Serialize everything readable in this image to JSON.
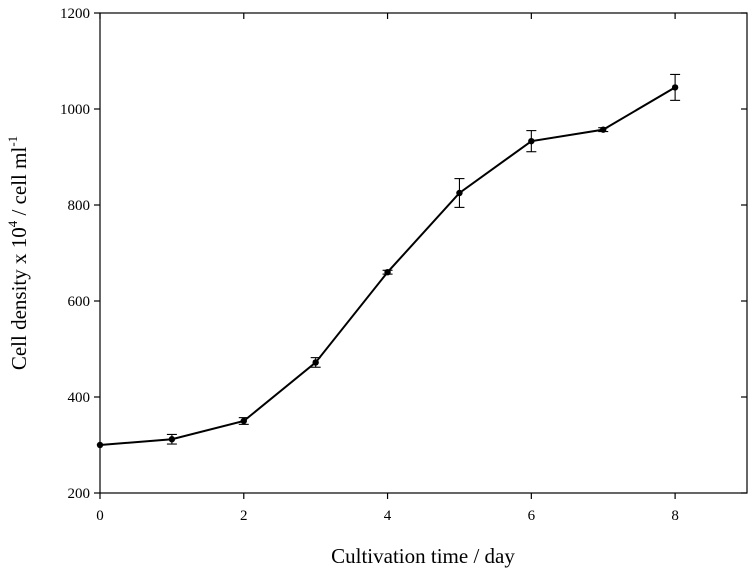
{
  "chart_data": {
    "type": "line",
    "title": "",
    "xlabel": "Cultivation time / day",
    "ylabel": {
      "base": "Cell density x 10",
      "exp1": "4",
      "mid": " / cell ml",
      "exp2": "-1"
    },
    "xlim": [
      0,
      9
    ],
    "ylim": [
      200,
      1200
    ],
    "xticks": [
      0,
      2,
      4,
      6,
      8
    ],
    "yticks": [
      200,
      400,
      600,
      800,
      1000,
      1200
    ],
    "xtick_labels": [
      "0",
      "2",
      "4",
      "6",
      "8"
    ],
    "ytick_labels": [
      "200",
      "400",
      "600",
      "800",
      "1000",
      "1200"
    ],
    "grid": false,
    "series": [
      {
        "x": [
          0,
          1,
          2,
          3,
          4,
          5,
          6,
          7,
          8
        ],
        "y": [
          300,
          312,
          350,
          472,
          660,
          825,
          933,
          957,
          1045
        ],
        "error": [
          0,
          10,
          7,
          10,
          4,
          30,
          22,
          4,
          27
        ],
        "color": "#000000",
        "marker": "circle"
      }
    ]
  }
}
